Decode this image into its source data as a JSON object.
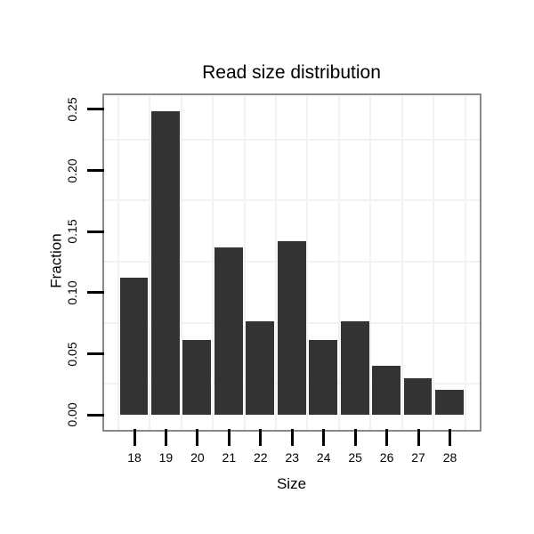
{
  "chart_data": {
    "type": "bar",
    "title": "Read size distribution",
    "xlabel": "Size",
    "ylabel": "Fraction",
    "categories": [
      "18",
      "19",
      "20",
      "21",
      "22",
      "23",
      "24",
      "25",
      "26",
      "27",
      "28"
    ],
    "values": [
      0.112,
      0.248,
      0.061,
      0.137,
      0.076,
      0.142,
      0.061,
      0.076,
      0.04,
      0.03,
      0.02
    ],
    "yticks": [
      0.0,
      0.05,
      0.1,
      0.15,
      0.2,
      0.25
    ],
    "ytick_labels": [
      "0.00",
      "0.05",
      "0.10",
      "0.15",
      "0.20",
      "0.25"
    ],
    "ylim": [
      -0.0124,
      0.261
    ],
    "grid": "minor-gridlines-only",
    "legend": "none",
    "colors": {
      "bar": "#333333",
      "grid": "#f2f2f2",
      "panel_border": "#8a8a8a",
      "tick": "#000000",
      "text": "#000000",
      "background": "#ffffff"
    }
  }
}
